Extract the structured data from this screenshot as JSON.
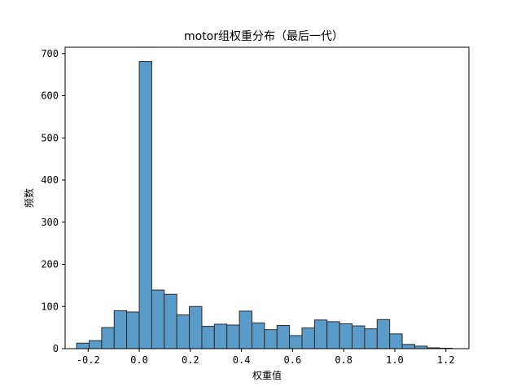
{
  "chart_data": {
    "type": "bar",
    "title": "motor组权重分布（最后一代）",
    "xlabel": "权重值",
    "ylabel": "频数",
    "xlim": [
      -0.29,
      1.29
    ],
    "ylim": [
      0,
      715
    ],
    "xticks": [
      {
        "value": -0.2,
        "label": "-0.2"
      },
      {
        "value": 0.0,
        "label": "0.0"
      },
      {
        "value": 0.2,
        "label": "0.2"
      },
      {
        "value": 0.4,
        "label": "0.4"
      },
      {
        "value": 0.6,
        "label": "0.6"
      },
      {
        "value": 0.8,
        "label": "0.8"
      },
      {
        "value": 1.0,
        "label": "1.0"
      },
      {
        "value": 1.2,
        "label": "1.2"
      }
    ],
    "yticks": [
      {
        "value": 0,
        "label": "0"
      },
      {
        "value": 100,
        "label": "100"
      },
      {
        "value": 200,
        "label": "200"
      },
      {
        "value": 300,
        "label": "300"
      },
      {
        "value": 400,
        "label": "400"
      },
      {
        "value": 500,
        "label": "500"
      },
      {
        "value": 600,
        "label": "600"
      },
      {
        "value": 700,
        "label": "700"
      }
    ],
    "bin_start": -0.245,
    "bin_width": 0.049,
    "values": [
      13,
      19,
      50,
      90,
      87,
      681,
      139,
      129,
      80,
      100,
      53,
      58,
      56,
      89,
      61,
      45,
      55,
      31,
      49,
      68,
      64,
      59,
      54,
      47,
      69,
      35,
      10,
      6,
      2,
      1
    ],
    "colors": {
      "bar": "#5b9bc9",
      "edge": "#2b2b2b"
    },
    "grid": false
  }
}
